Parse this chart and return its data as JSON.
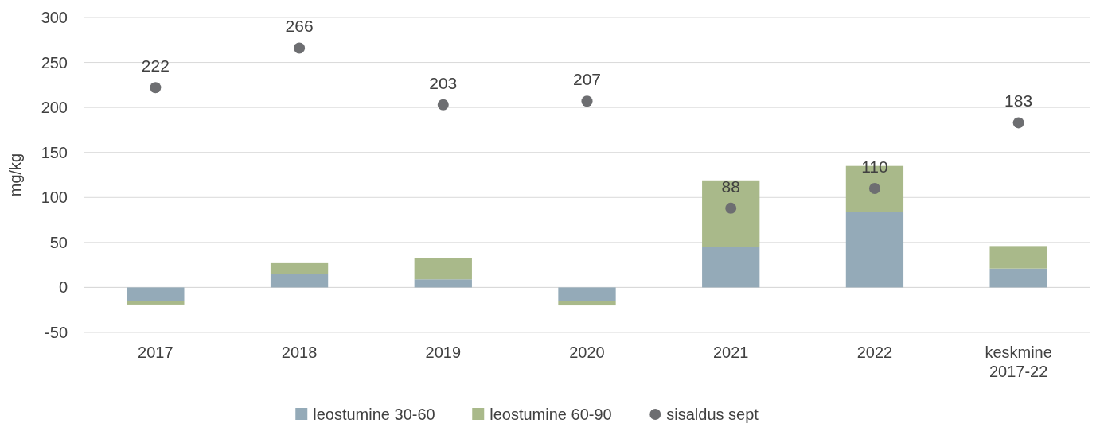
{
  "chart_data": {
    "type": "bar",
    "ylabel": "mg/kg",
    "categories": [
      "2017",
      "2018",
      "2019",
      "2020",
      "2021",
      "2022",
      "keskmine 2017-22"
    ],
    "stacked": true,
    "ylim": [
      -50,
      300
    ],
    "yticks": [
      -50,
      0,
      50,
      100,
      150,
      200,
      250,
      300
    ],
    "grid": "y",
    "legend": "bottom",
    "series": [
      {
        "name": "leostumine 30-60",
        "color": "#94aab8",
        "values": [
          -15,
          15,
          9,
          -15,
          45,
          84,
          21
        ]
      },
      {
        "name": "leostumine 60-90",
        "color": "#a9b98a",
        "values": [
          -4,
          12,
          24,
          -5,
          74,
          51,
          25
        ]
      },
      {
        "name": "sisaldus sept",
        "type": "scatter",
        "marker": "circle",
        "color": "#6d6e71",
        "values": [
          222,
          266,
          203,
          207,
          88,
          110,
          183
        ],
        "value_labels": [
          "222",
          "266",
          "203",
          "207",
          "88",
          "110",
          "183"
        ]
      }
    ]
  }
}
